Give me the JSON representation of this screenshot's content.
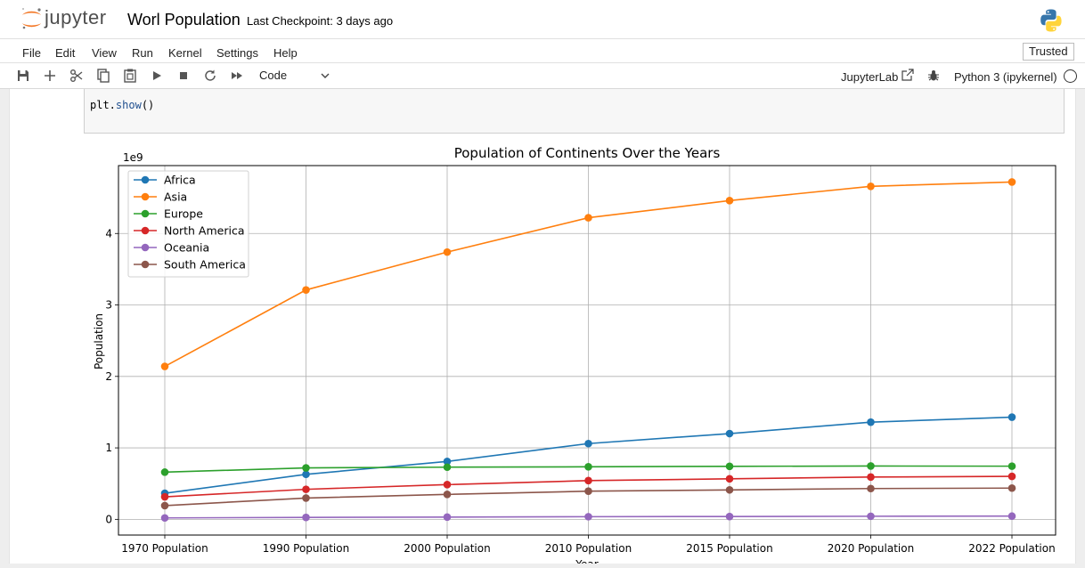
{
  "header": {
    "logo_text": "jupyter",
    "notebook_title": "Worl Population",
    "checkpoint": "Last Checkpoint: 3 days ago"
  },
  "menubar": {
    "items": [
      "File",
      "Edit",
      "View",
      "Run",
      "Kernel",
      "Settings",
      "Help"
    ],
    "trusted": "Trusted"
  },
  "toolbar": {
    "buttons": [
      "save-icon",
      "add-icon",
      "cut-icon",
      "copy-icon",
      "paste-icon",
      "run-icon",
      "stop-icon",
      "restart-icon",
      "fast-forward-icon"
    ],
    "cell_type": "Code",
    "jupyterlab_link": "JupyterLab",
    "kernel": "Python 3 (ipykernel)"
  },
  "cell": {
    "code_obj": "plt.",
    "code_fn": "show",
    "code_parens": "()"
  },
  "chart_data": {
    "type": "line",
    "title": "Population of Continents Over the Years",
    "xlabel": "Year",
    "ylabel": "Population",
    "y_offset_label": "1e9",
    "categories": [
      "1970 Population",
      "1990 Population",
      "2000 Population",
      "2010 Population",
      "2015 Population",
      "2020 Population",
      "2022 Population"
    ],
    "ylim": [
      -0.22,
      4.95
    ],
    "yticks": [
      0,
      1,
      2,
      3,
      4
    ],
    "grid": true,
    "legend_position": "top-left",
    "series": [
      {
        "name": "Africa",
        "color": "#1f77b4",
        "values": [
          0.365,
          0.63,
          0.81,
          1.06,
          1.2,
          1.36,
          1.43
        ]
      },
      {
        "name": "Asia",
        "color": "#ff7f0e",
        "values": [
          2.14,
          3.21,
          3.74,
          4.22,
          4.46,
          4.66,
          4.72
        ]
      },
      {
        "name": "Europe",
        "color": "#2ca02c",
        "values": [
          0.66,
          0.72,
          0.73,
          0.735,
          0.742,
          0.746,
          0.744
        ]
      },
      {
        "name": "North America",
        "color": "#d62728",
        "values": [
          0.315,
          0.42,
          0.486,
          0.542,
          0.567,
          0.592,
          0.601
        ]
      },
      {
        "name": "Oceania",
        "color": "#9467bd",
        "values": [
          0.0197,
          0.027,
          0.0315,
          0.037,
          0.0396,
          0.0432,
          0.045
        ]
      },
      {
        "name": "South America",
        "color": "#8c564b",
        "values": [
          0.192,
          0.298,
          0.349,
          0.394,
          0.412,
          0.431,
          0.437
        ]
      }
    ]
  }
}
